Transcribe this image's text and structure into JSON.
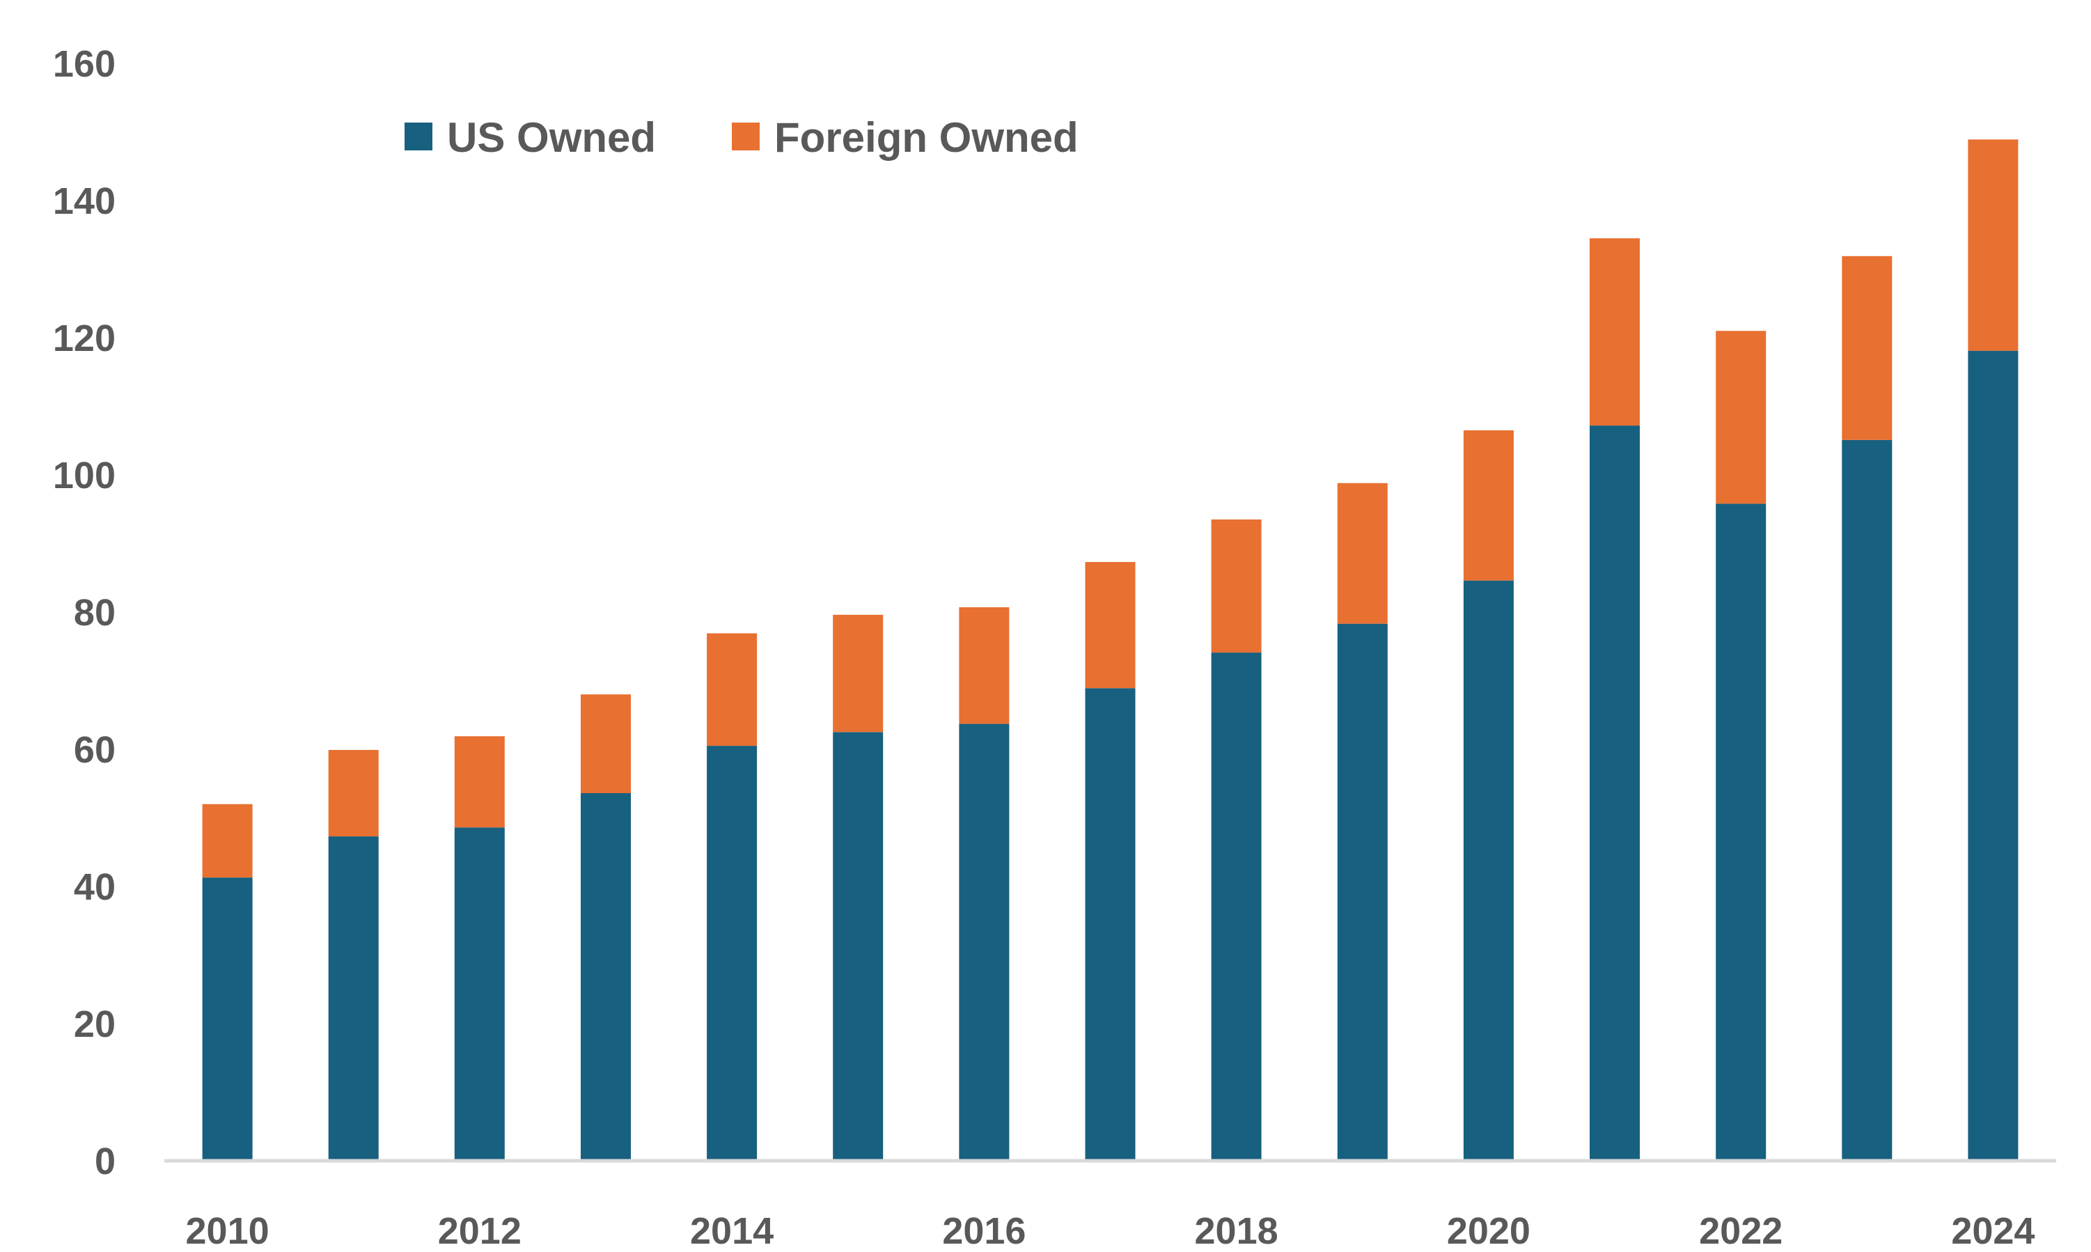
{
  "chart_data": {
    "type": "bar",
    "stacked": true,
    "categories": [
      "2010",
      "2011",
      "2012",
      "2013",
      "2014",
      "2015",
      "2016",
      "2017",
      "2018",
      "2019",
      "2020",
      "2021",
      "2022",
      "2023",
      "2024"
    ],
    "x_tick_labels": [
      "2010",
      "2012",
      "2014",
      "2016",
      "2018",
      "2020",
      "2022",
      "2024"
    ],
    "series": [
      {
        "name": "US Owned",
        "color": "#17607F",
        "values": [
          41.3,
          47.3,
          48.6,
          53.6,
          60.5,
          62.5,
          63.7,
          68.9,
          74.1,
          78.3,
          84.6,
          107.2,
          95.8,
          105.1,
          118.1
        ]
      },
      {
        "name": "Foreign Owned",
        "color": "#E87031",
        "values": [
          10.7,
          12.6,
          13.3,
          14.4,
          16.4,
          17.1,
          17.0,
          18.4,
          19.4,
          20.5,
          21.9,
          27.3,
          25.2,
          26.8,
          30.8
        ]
      }
    ],
    "ylim": [
      0,
      160
    ],
    "y_ticks": [
      0,
      20,
      40,
      60,
      80,
      100,
      120,
      140,
      160
    ],
    "title": "",
    "xlabel": "",
    "ylabel": "",
    "grid": false,
    "legend_position": "top-left",
    "axis_color": "#D9D9D9",
    "label_color": "#595959"
  }
}
